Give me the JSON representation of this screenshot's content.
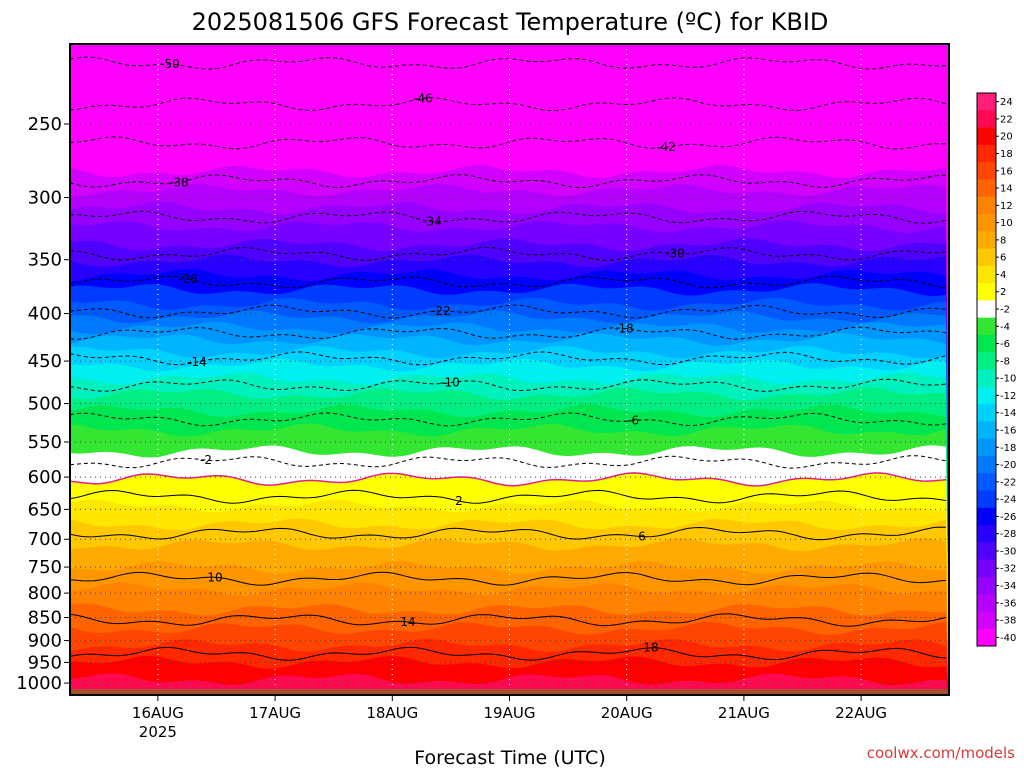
{
  "chart_data": {
    "type": "heatmap",
    "title": "2025081506 GFS Forecast Temperature (ºC) for KBID",
    "xlabel": "Forecast Time (UTC)",
    "ylabel": "",
    "credit": "coolwx.com/models",
    "y_scale": "log",
    "y_reversed": true,
    "ylim": [
      1030,
      205
    ],
    "y_ticks": [
      250,
      300,
      350,
      400,
      450,
      500,
      550,
      600,
      650,
      700,
      750,
      800,
      850,
      900,
      950,
      1000
    ],
    "xlim": [
      "2025-08-15T06",
      "2025-08-22T18"
    ],
    "x_ticks": [
      {
        "label": "16AUG",
        "sublabel": "2025",
        "time": "2025-08-16T00"
      },
      {
        "label": "17AUG",
        "sublabel": "",
        "time": "2025-08-17T00"
      },
      {
        "label": "18AUG",
        "sublabel": "",
        "time": "2025-08-18T00"
      },
      {
        "label": "19AUG",
        "sublabel": "",
        "time": "2025-08-19T00"
      },
      {
        "label": "20AUG",
        "sublabel": "",
        "time": "2025-08-20T00"
      },
      {
        "label": "21AUG",
        "sublabel": "",
        "time": "2025-08-21T00"
      },
      {
        "label": "22AUG",
        "sublabel": "",
        "time": "2025-08-22T00"
      }
    ],
    "grid": true,
    "surface_pressure_hpa": 1015,
    "colorbar": {
      "labels": [
        "24",
        "22",
        "20",
        "18",
        "16",
        "14",
        "12",
        "10",
        "8",
        "6",
        "4",
        "2",
        "-2",
        "-4",
        "-6",
        "-8",
        "-10",
        "-12",
        "-14",
        "-16",
        "-18",
        "-20",
        "-22",
        "-24",
        "-26",
        "-28",
        "-30",
        "-32",
        "-34",
        "-36",
        "-38",
        "-40"
      ],
      "colors": [
        "#ff1e78",
        "#ff0a50",
        "#ff0000",
        "#ff2800",
        "#ff4600",
        "#ff6400",
        "#ff8200",
        "#ff9600",
        "#ffaa00",
        "#ffc800",
        "#ffe600",
        "#ffff00",
        "#ffffff",
        "#32e632",
        "#00e650",
        "#00ee82",
        "#00f0be",
        "#00f0f0",
        "#00d2ff",
        "#00b4ff",
        "#0096ff",
        "#0078ff",
        "#005aff",
        "#003cff",
        "#0000ff",
        "#2800ff",
        "#5000ff",
        "#7800ff",
        "#9600ff",
        "#b400ff",
        "#d200ff",
        "#ff00ff"
      ]
    },
    "isotherms": [
      {
        "value": -50,
        "pressure_hpa": 215
      },
      {
        "value": -46,
        "pressure_hpa": 238
      },
      {
        "value": -42,
        "pressure_hpa": 262
      },
      {
        "value": -38,
        "pressure_hpa": 288
      },
      {
        "value": -34,
        "pressure_hpa": 315
      },
      {
        "value": -30,
        "pressure_hpa": 345
      },
      {
        "value": -26,
        "pressure_hpa": 370
      },
      {
        "value": -22,
        "pressure_hpa": 398
      },
      {
        "value": -18,
        "pressure_hpa": 420
      },
      {
        "value": -14,
        "pressure_hpa": 447
      },
      {
        "value": -10,
        "pressure_hpa": 478
      },
      {
        "value": -6,
        "pressure_hpa": 520
      },
      {
        "value": -2,
        "pressure_hpa": 578
      },
      {
        "value": 2,
        "pressure_hpa": 630
      },
      {
        "value": 6,
        "pressure_hpa": 690
      },
      {
        "value": 10,
        "pressure_hpa": 772
      },
      {
        "value": 14,
        "pressure_hpa": 855
      },
      {
        "value": 18,
        "pressure_hpa": 930
      }
    ]
  }
}
